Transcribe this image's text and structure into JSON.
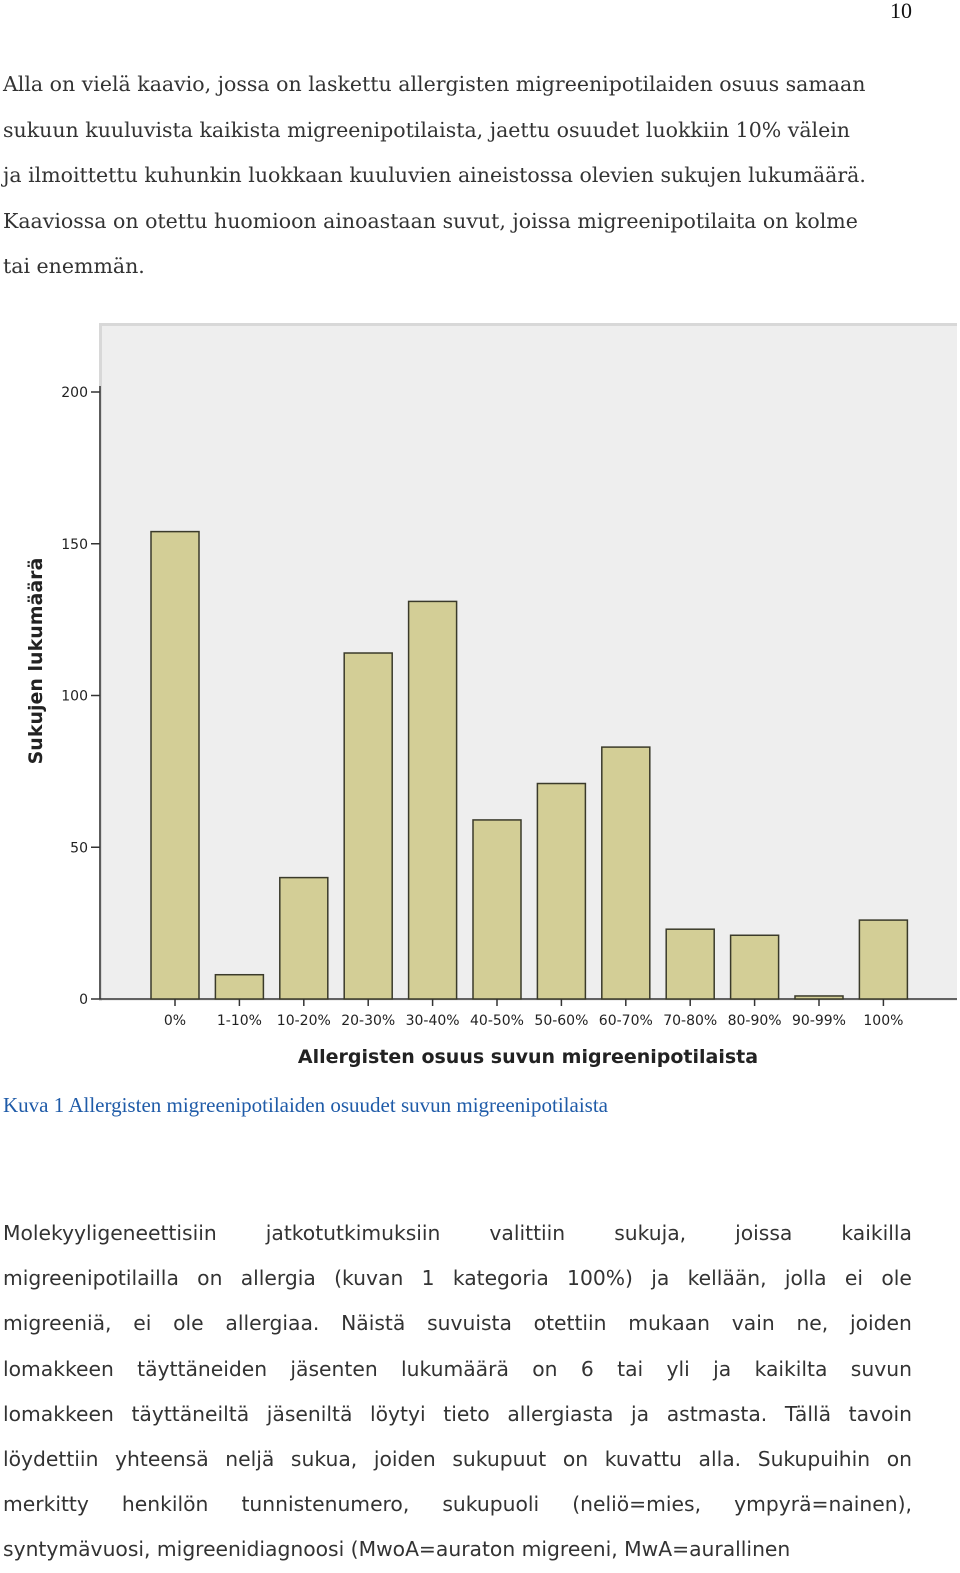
{
  "page_number": "10",
  "intro_lines": [
    "Alla on vielä kaavio, jossa on laskettu allergisten migreenipotilaiden osuus samaan",
    "sukuun kuuluvista kaikista migreenipotilaista, jaettu osuudet luokkiin 10% välein",
    "ja ilmoittettu kuhunkin luokkaan kuuluvien aineistossa olevien sukujen lukumäärä.",
    "Kaaviossa on otettu huomioon ainoastaan suvut, joissa migreenipotilaita on kolme",
    "tai enemmän."
  ],
  "chart_data": {
    "type": "bar",
    "categories": [
      "0%",
      "1-10%",
      "10-20%",
      "20-30%",
      "30-40%",
      "40-50%",
      "50-60%",
      "60-70%",
      "70-80%",
      "80-90%",
      "90-99%",
      "100%"
    ],
    "values": [
      154,
      8,
      40,
      114,
      131,
      59,
      71,
      83,
      23,
      21,
      1,
      26
    ],
    "xlabel": "Allergisten osuus suvun migreenipotilaista",
    "ylabel": "Sukujen lukumäärä",
    "ylim": [
      0,
      200
    ],
    "yticks": [
      "0",
      "50",
      "100",
      "150",
      "200"
    ],
    "bar_color": "#d3ce96",
    "bar_edge_color": "#3a3a2a",
    "background_color": "#eeeeee",
    "grid": false
  },
  "caption": "Kuva 1 Allergisten migreenipotilaiden osuudet suvun migreenipotilaista",
  "body_lines": [
    "Molekyyligeneettisiin jatkotutkimuksiin valittiin sukuja, joissa kaikilla",
    "migreenipotilailla on allergia (kuvan 1 kategoria 100%) ja kellään, jolla ei ole",
    "migreeniä, ei ole allergiaa. Näistä suvuista otettiin mukaan vain ne, joiden",
    "lomakkeen täyttäneiden jäsenten lukumäärä on 6 tai yli ja kaikilta suvun",
    "lomakkeen täyttäneiltä jäseniltä löytyi tieto allergiasta ja astmasta. Tällä tavoin",
    "löydettiin yhteensä neljä sukua, joiden sukupuut on kuvattu alla. Sukupuihin on",
    "merkitty henkilön tunnistenumero, sukupuoli (neliö=mies, ympyrä=nainen),",
    "syntymävuosi, migreenidiagnoosi (MwoA=auraton migreeni, MwA=aurallinen"
  ]
}
